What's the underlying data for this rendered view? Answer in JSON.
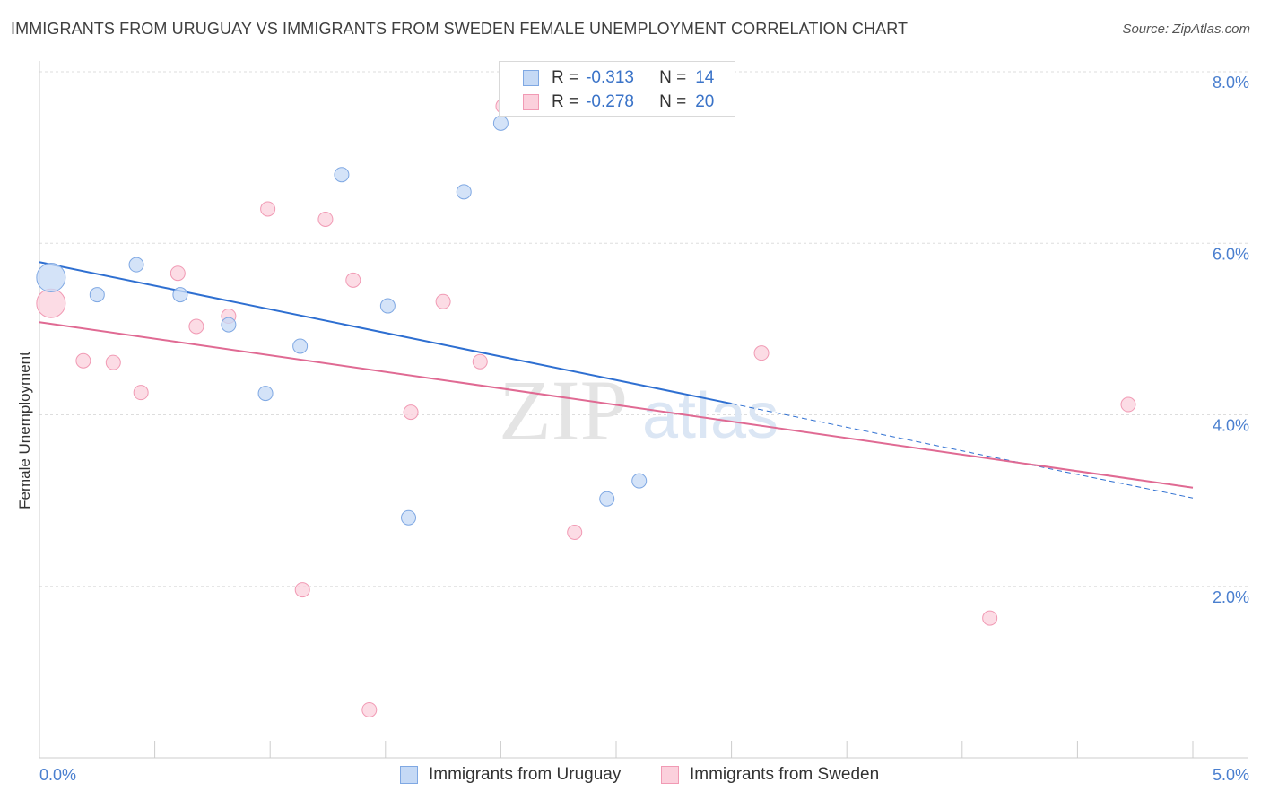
{
  "title": "IMMIGRANTS FROM URUGUAY VS IMMIGRANTS FROM SWEDEN FEMALE UNEMPLOYMENT CORRELATION CHART",
  "source": "Source: ZipAtlas.com",
  "watermark": {
    "zip": "ZIP",
    "atlas": "atlas"
  },
  "legend": {
    "rows": [
      {
        "r_label": "R =",
        "r_value": "-0.313",
        "n_label": "N =",
        "n_value": "14"
      },
      {
        "r_label": "R =",
        "r_value": "-0.278",
        "n_label": "N =",
        "n_value": "20"
      }
    ]
  },
  "colors": {
    "uruguay_fill": "#c5d9f5",
    "uruguay_stroke": "#7fa8e3",
    "uruguay_line": "#2e6fd1",
    "sweden_fill": "#fbd0dc",
    "sweden_stroke": "#f19ab4",
    "sweden_line": "#e06a93",
    "axis_label": "#4a7fcf",
    "grid": "#dddddd"
  },
  "chart_data": {
    "type": "scatter",
    "title": "IMMIGRANTS FROM URUGUAY VS IMMIGRANTS FROM SWEDEN FEMALE UNEMPLOYMENT CORRELATION CHART",
    "xlabel": "",
    "ylabel": "Female Unemployment",
    "xlim": [
      0,
      5
    ],
    "ylim": [
      0,
      8
    ],
    "x_tick_labels": [
      "0.0%",
      "5.0%"
    ],
    "y_ticks": [
      2,
      4,
      6,
      8
    ],
    "y_tick_labels": [
      "2.0%",
      "4.0%",
      "6.0%",
      "8.0%"
    ],
    "series": [
      {
        "name": "Immigrants from Uruguay",
        "r": -0.313,
        "n": 14,
        "points": [
          {
            "x": 0.05,
            "y": 5.6,
            "size": "large"
          },
          {
            "x": 0.25,
            "y": 5.4
          },
          {
            "x": 0.42,
            "y": 5.75
          },
          {
            "x": 0.61,
            "y": 5.4
          },
          {
            "x": 0.82,
            "y": 5.05
          },
          {
            "x": 0.98,
            "y": 4.25
          },
          {
            "x": 1.13,
            "y": 4.8
          },
          {
            "x": 1.31,
            "y": 6.8
          },
          {
            "x": 1.51,
            "y": 5.27
          },
          {
            "x": 1.6,
            "y": 2.8
          },
          {
            "x": 1.84,
            "y": 6.6
          },
          {
            "x": 2.0,
            "y": 7.4
          },
          {
            "x": 2.46,
            "y": 3.02
          },
          {
            "x": 2.6,
            "y": 3.23
          }
        ],
        "trend": {
          "x0": 0.0,
          "y0": 5.78,
          "x1": 3.0,
          "y1": 4.13,
          "dash_to_x": 5.0,
          "dash_to_y": 3.03
        }
      },
      {
        "name": "Immigrants from Sweden",
        "r": -0.278,
        "n": 20,
        "points": [
          {
            "x": 0.05,
            "y": 5.3,
            "size": "large"
          },
          {
            "x": 0.19,
            "y": 4.63
          },
          {
            "x": 0.32,
            "y": 4.61
          },
          {
            "x": 0.44,
            "y": 4.26
          },
          {
            "x": 0.6,
            "y": 5.65
          },
          {
            "x": 0.68,
            "y": 5.03
          },
          {
            "x": 0.82,
            "y": 5.15
          },
          {
            "x": 0.99,
            "y": 6.4
          },
          {
            "x": 1.14,
            "y": 1.96
          },
          {
            "x": 1.24,
            "y": 6.28
          },
          {
            "x": 1.36,
            "y": 5.57
          },
          {
            "x": 1.43,
            "y": 0.56
          },
          {
            "x": 1.61,
            "y": 4.03
          },
          {
            "x": 1.75,
            "y": 5.32
          },
          {
            "x": 1.91,
            "y": 4.62
          },
          {
            "x": 2.01,
            "y": 7.6
          },
          {
            "x": 2.32,
            "y": 2.63
          },
          {
            "x": 3.13,
            "y": 4.72
          },
          {
            "x": 4.12,
            "y": 1.63
          },
          {
            "x": 4.72,
            "y": 4.12
          }
        ],
        "trend": {
          "x0": 0.0,
          "y0": 5.08,
          "x1": 5.0,
          "y1": 3.15
        }
      }
    ]
  }
}
